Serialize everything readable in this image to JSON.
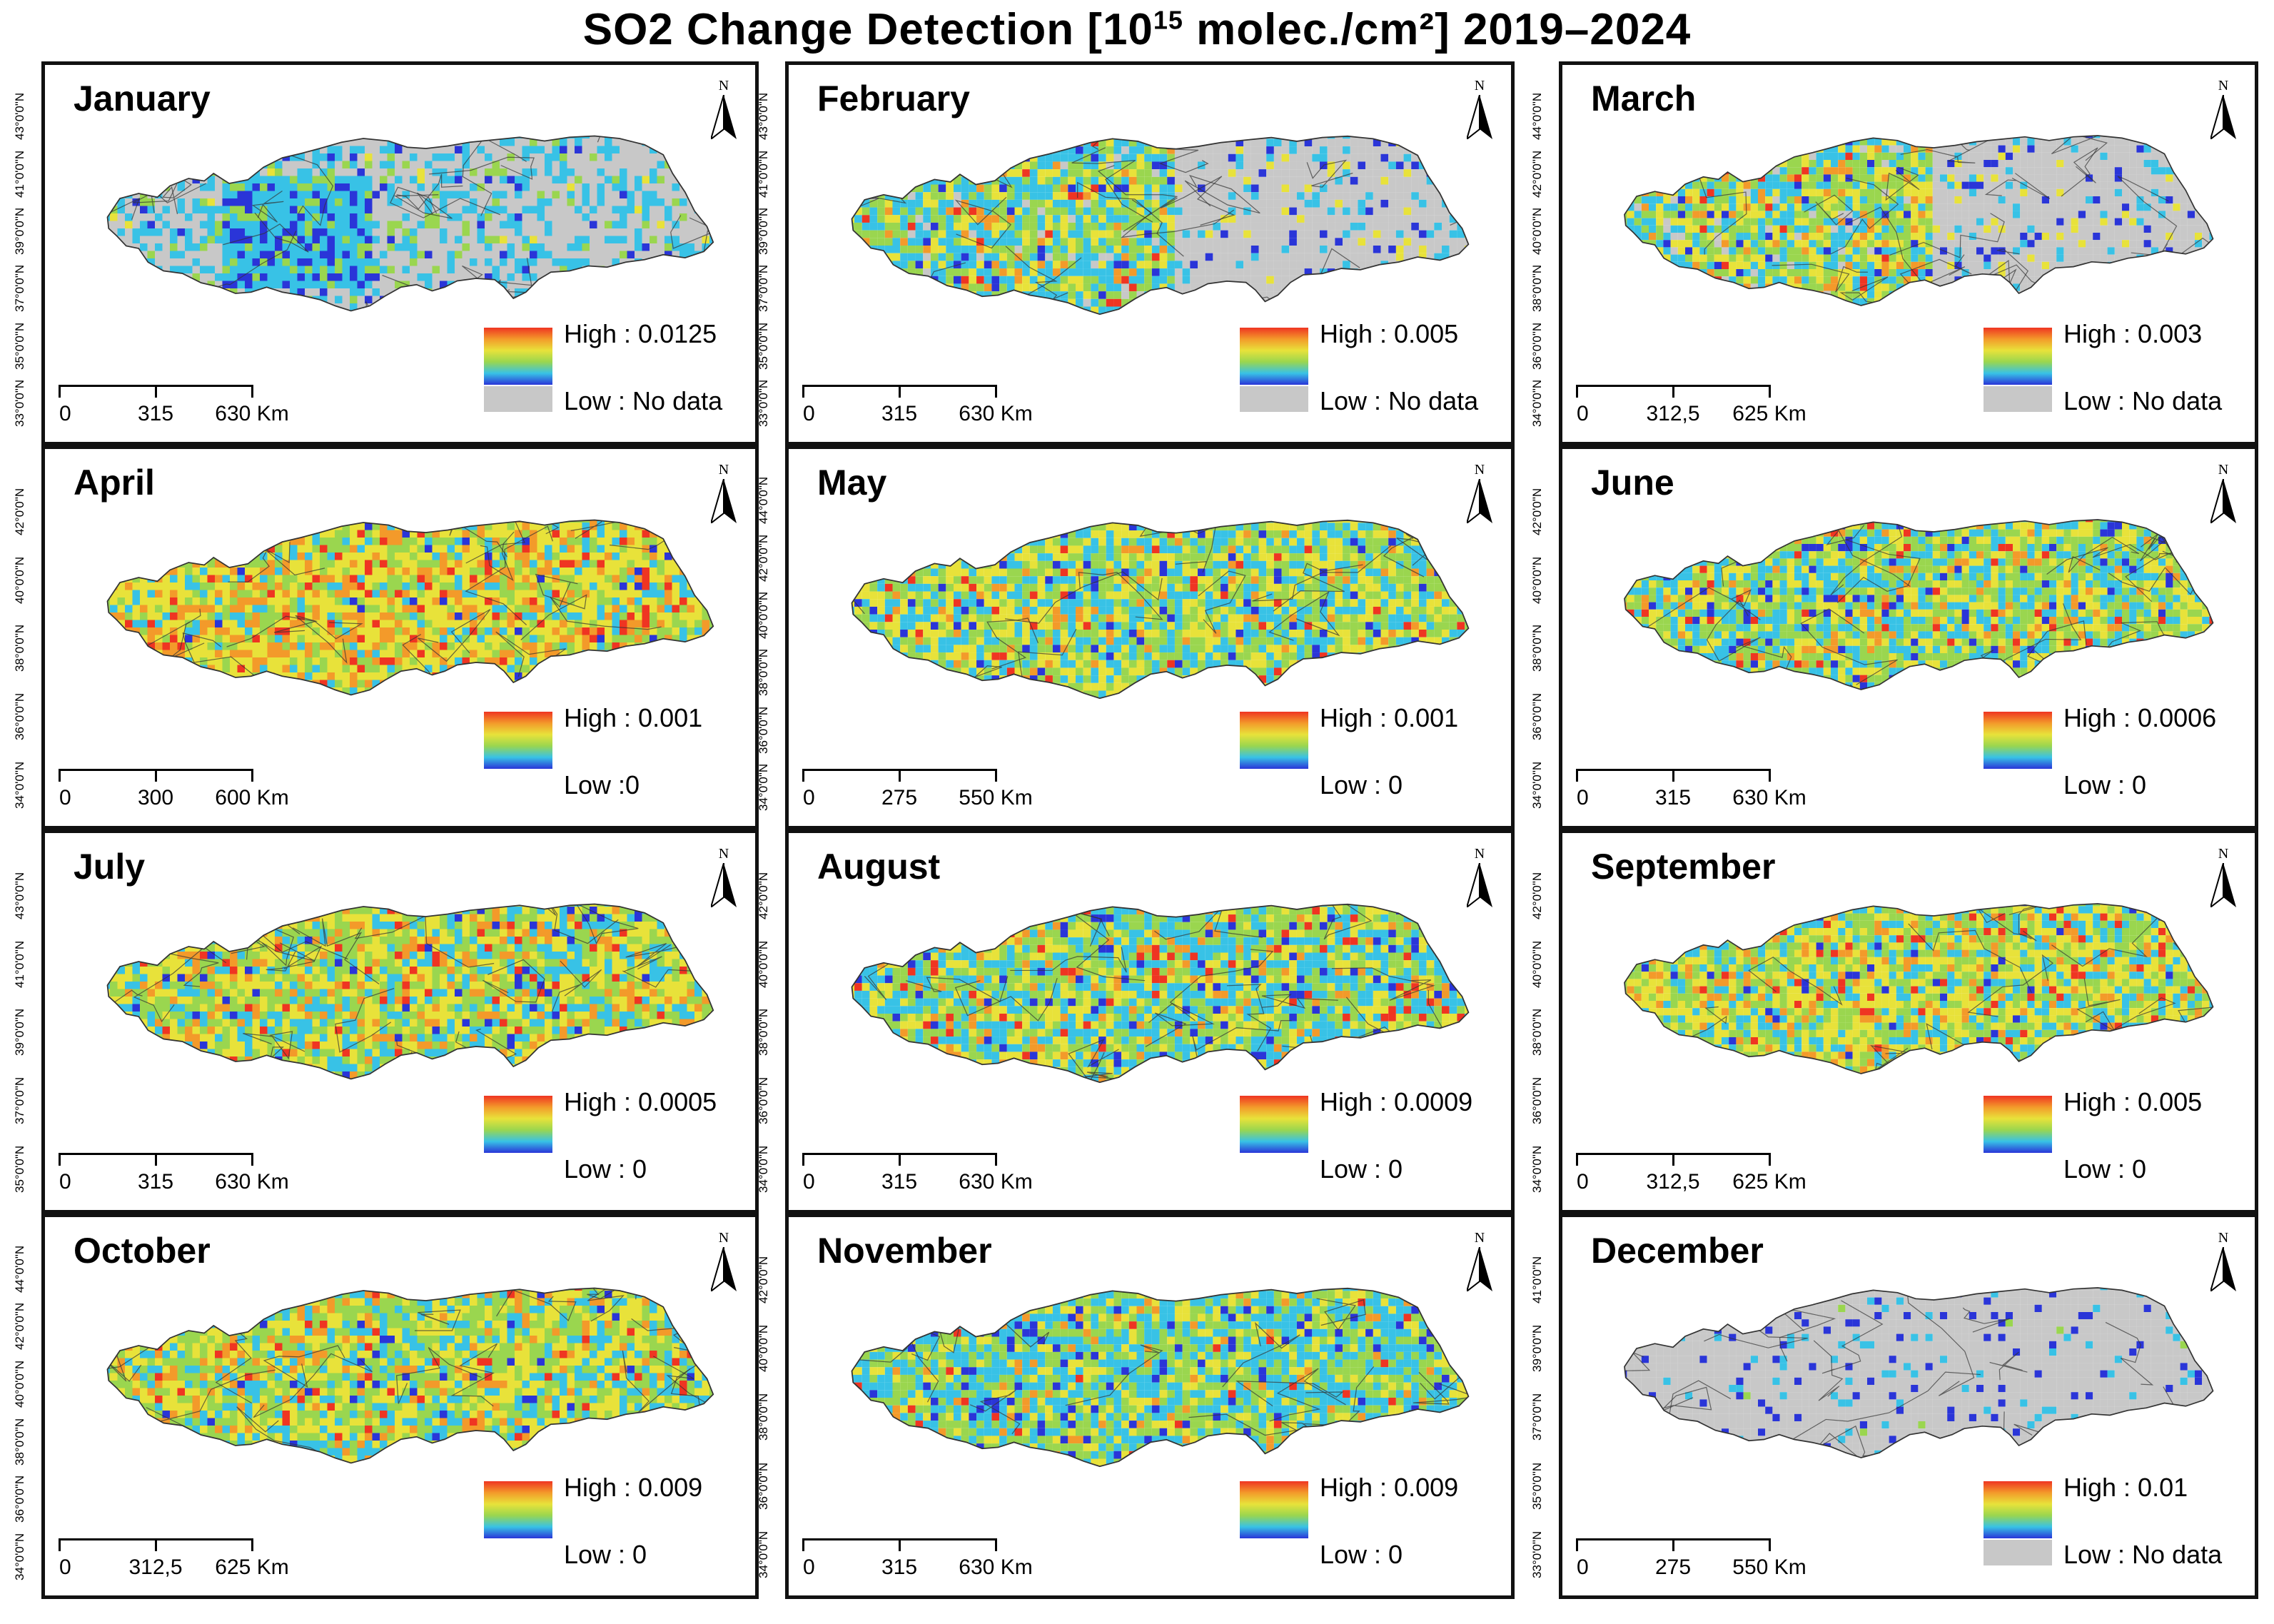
{
  "title": {
    "prefix": "SO2  Change Detection [10",
    "sup": "15",
    "suffix": " molec./cm²] 2019–2024"
  },
  "north_label": "N",
  "colors": {
    "frame": "#111111",
    "nodata": "#c8c8c8",
    "water": "#8fd3f0",
    "lowest": "#2a35d8",
    "highest": "#ef3522"
  },
  "panels": [
    {
      "month": "January",
      "high": "High : 0.0125",
      "low": "Low :  No data",
      "scale": [
        "0",
        "315",
        "630 Km"
      ],
      "nodata": true,
      "pattern": "jan",
      "lat": [
        "43°0'0\"N",
        "41°0'0\"N",
        "39°0'0\"N",
        "37°0'0\"N",
        "35°0'0\"N",
        "33°0'0\"N"
      ]
    },
    {
      "month": "February",
      "high": "High : 0.005",
      "low": "Low :  No data",
      "scale": [
        "0",
        "315",
        "630 Km"
      ],
      "nodata": true,
      "pattern": "feb",
      "lat": [
        "43°0'0\"N",
        "41°0'0\"N",
        "39°0'0\"N",
        "37°0'0\"N",
        "35°0'0\"N",
        "33°0'0\"N"
      ]
    },
    {
      "month": "March",
      "high": "High : 0.003",
      "low": "Low : No data",
      "scale": [
        "0",
        "312,5",
        "625 Km"
      ],
      "nodata": true,
      "pattern": "mar",
      "lat": [
        "44°0'0\"N",
        "42°0'0\"N",
        "40°0'0\"N",
        "38°0'0\"N",
        "36°0'0\"N",
        "34°0'0\"N"
      ]
    },
    {
      "month": "April",
      "high": "High : 0.001",
      "low": "Low :0",
      "scale": [
        "0",
        "300",
        "600 Km"
      ],
      "nodata": false,
      "pattern": "apr",
      "lat": [
        "42°0'0\"N",
        "40°0'0\"N",
        "38°0'0\"N",
        "36°0'0\"N",
        "34°0'0\"N"
      ]
    },
    {
      "month": "May",
      "high": "High : 0.001",
      "low": "Low : 0",
      "scale": [
        "0",
        "275",
        "550 Km"
      ],
      "nodata": false,
      "pattern": "may",
      "lat": [
        "44°0'0\"N",
        "42°0'0\"N",
        "40°0'0\"N",
        "38°0'0\"N",
        "36°0'0\"N",
        "34°0'0\"N"
      ]
    },
    {
      "month": "June",
      "high": "High : 0.0006",
      "low": "Low : 0",
      "scale": [
        "0",
        "315",
        "630 Km"
      ],
      "nodata": false,
      "pattern": "jun",
      "lat": [
        "42°0'0\"N",
        "40°0'0\"N",
        "38°0'0\"N",
        "36°0'0\"N",
        "34°0'0\"N"
      ]
    },
    {
      "month": "July",
      "high": "High : 0.0005",
      "low": "Low : 0",
      "scale": [
        "0",
        "315",
        "630 Km"
      ],
      "nodata": false,
      "pattern": "jul",
      "lat": [
        "43°0'0\"N",
        "41°0'0\"N",
        "39°0'0\"N",
        "37°0'0\"N",
        "35°0'0\"N"
      ]
    },
    {
      "month": "August",
      "high": "High : 0.0009",
      "low": "Low : 0",
      "scale": [
        "0",
        "315",
        "630 Km"
      ],
      "nodata": false,
      "pattern": "aug",
      "lat": [
        "42°0'0\"N",
        "40°0'0\"N",
        "38°0'0\"N",
        "36°0'0\"N",
        "34°0'0\"N"
      ]
    },
    {
      "month": "September",
      "high": "High : 0.005",
      "low": "Low : 0",
      "scale": [
        "0",
        "312,5",
        "625 Km"
      ],
      "nodata": false,
      "pattern": "sep",
      "lat": [
        "42°0'0\"N",
        "40°0'0\"N",
        "38°0'0\"N",
        "36°0'0\"N",
        "34°0'0\"N"
      ]
    },
    {
      "month": "October",
      "high": "High : 0.009",
      "low": "Low : 0",
      "scale": [
        "0",
        "312,5",
        "625 Km"
      ],
      "nodata": false,
      "pattern": "oct",
      "lat": [
        "44°0'0\"N",
        "42°0'0\"N",
        "40°0'0\"N",
        "38°0'0\"N",
        "36°0'0\"N",
        "34°0'0\"N"
      ]
    },
    {
      "month": "November",
      "high": "High : 0.009",
      "low": "Low : 0",
      "scale": [
        "0",
        "315",
        "630 Km"
      ],
      "nodata": false,
      "pattern": "nov",
      "lat": [
        "42°0'0\"N",
        "40°0'0\"N",
        "38°0'0\"N",
        "36°0'0\"N",
        "34°0'0\"N"
      ]
    },
    {
      "month": "December",
      "high": "High : 0.01",
      "low": "Low :  No data",
      "scale": [
        "0",
        "275",
        "550 Km"
      ],
      "nodata": true,
      "pattern": "dec",
      "lat": [
        "41°0'0\"N",
        "39°0'0\"N",
        "37°0'0\"N",
        "35°0'0\"N",
        "33°0'0\"N"
      ]
    }
  ]
}
